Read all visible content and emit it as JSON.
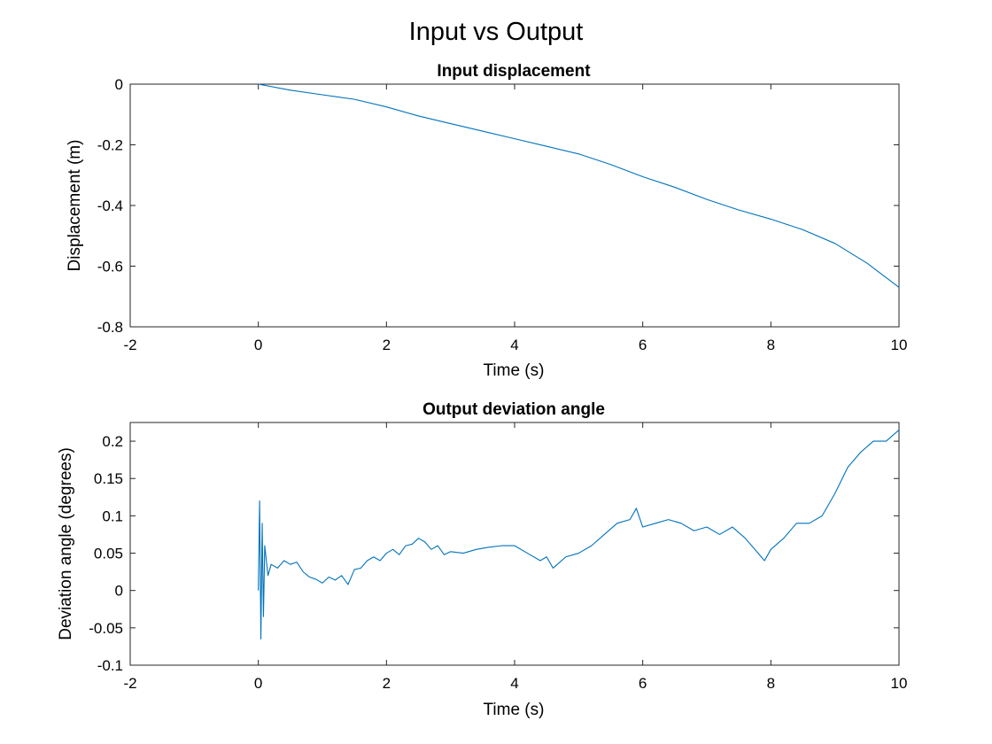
{
  "figure": {
    "title": "Input vs Output"
  },
  "chart_data": [
    {
      "type": "line",
      "title": "Input displacement",
      "xlabel": "Time (s)",
      "ylabel": "Displacement (m)",
      "xlim": [
        -2,
        10
      ],
      "ylim": [
        -0.8,
        0
      ],
      "xticks": [
        "-2",
        "0",
        "2",
        "4",
        "6",
        "8",
        "10"
      ],
      "yticks": [
        "0",
        "-0.2",
        "-0.4",
        "-0.6",
        "-0.8"
      ],
      "grid": false,
      "color": "#0072BD",
      "series": [
        {
          "x": [
            0,
            0.5,
            1,
            1.5,
            2,
            2.5,
            3,
            3.5,
            4,
            4.5,
            5,
            5.5,
            6,
            6.5,
            7,
            7.5,
            8,
            8.5,
            9,
            9.5,
            10
          ],
          "y": [
            0,
            -0.02,
            -0.035,
            -0.05,
            -0.075,
            -0.105,
            -0.13,
            -0.155,
            -0.18,
            -0.205,
            -0.23,
            -0.265,
            -0.305,
            -0.34,
            -0.38,
            -0.415,
            -0.445,
            -0.48,
            -0.525,
            -0.59,
            -0.67
          ]
        }
      ]
    },
    {
      "type": "line",
      "title": "Output deviation angle",
      "xlabel": "Time (s)",
      "ylabel": "Deviation angle (degrees)",
      "xlim": [
        -2,
        10
      ],
      "ylim": [
        -0.1,
        0.225
      ],
      "xticks": [
        "-2",
        "0",
        "2",
        "4",
        "6",
        "8",
        "10"
      ],
      "yticks": [
        "0.2",
        "0.15",
        "0.1",
        "0.05",
        "0",
        "-0.05",
        "-0.1"
      ],
      "grid": false,
      "color": "#0072BD",
      "series": [
        {
          "x": [
            0,
            0.02,
            0.04,
            0.06,
            0.08,
            0.1,
            0.15,
            0.2,
            0.3,
            0.4,
            0.5,
            0.6,
            0.7,
            0.8,
            0.9,
            1.0,
            1.1,
            1.2,
            1.3,
            1.4,
            1.5,
            1.6,
            1.7,
            1.8,
            1.9,
            2.0,
            2.1,
            2.2,
            2.3,
            2.4,
            2.5,
            2.6,
            2.7,
            2.8,
            2.9,
            3.0,
            3.2,
            3.4,
            3.6,
            3.8,
            4.0,
            4.2,
            4.4,
            4.5,
            4.6,
            4.8,
            5.0,
            5.2,
            5.4,
            5.6,
            5.8,
            5.9,
            6.0,
            6.2,
            6.4,
            6.6,
            6.8,
            7.0,
            7.2,
            7.4,
            7.6,
            7.8,
            7.9,
            8.0,
            8.2,
            8.4,
            8.6,
            8.8,
            9.0,
            9.2,
            9.4,
            9.6,
            9.8,
            10.0
          ],
          "y": [
            0,
            0.12,
            -0.065,
            0.09,
            -0.035,
            0.06,
            0.02,
            0.035,
            0.03,
            0.04,
            0.035,
            0.038,
            0.025,
            0.018,
            0.015,
            0.01,
            0.018,
            0.014,
            0.02,
            0.008,
            0.028,
            0.03,
            0.04,
            0.045,
            0.04,
            0.05,
            0.055,
            0.048,
            0.06,
            0.062,
            0.07,
            0.065,
            0.055,
            0.06,
            0.048,
            0.052,
            0.05,
            0.055,
            0.058,
            0.06,
            0.06,
            0.05,
            0.04,
            0.045,
            0.03,
            0.045,
            0.05,
            0.06,
            0.075,
            0.09,
            0.095,
            0.11,
            0.085,
            0.09,
            0.095,
            0.09,
            0.08,
            0.085,
            0.075,
            0.085,
            0.07,
            0.05,
            0.04,
            0.055,
            0.07,
            0.09,
            0.09,
            0.1,
            0.13,
            0.165,
            0.185,
            0.2,
            0.2,
            0.215
          ]
        }
      ]
    }
  ]
}
